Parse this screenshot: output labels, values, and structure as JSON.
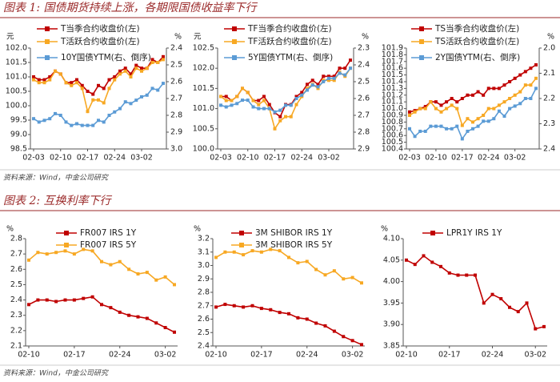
{
  "figures": [
    {
      "title": "图表 1:  国债期货持续上涨，各期限国债收益率下行",
      "source": "资料来源：Wind，中金公司研究"
    },
    {
      "title": "图表 2:  互换利率下行",
      "source": "资料来源：Wind，中金公司研究"
    }
  ],
  "chart_data": [
    {
      "type": "line",
      "y_unit": "元",
      "y2_unit": "%",
      "categories": [
        "02-03",
        null,
        null,
        null,
        null,
        "02-10",
        null,
        null,
        null,
        null,
        "02-17",
        null,
        null,
        null,
        null,
        "02-24",
        null,
        null,
        null,
        null,
        "03-02",
        null,
        null,
        null,
        null
      ],
      "ylim": [
        98.5,
        102
      ],
      "yticks": [
        98.5,
        {
          "value": 99,
          "label": "99.0"
        },
        99.5,
        {
          "value": 100,
          "label": "100.0"
        },
        100.5,
        {
          "value": 101,
          "label": "101.0"
        },
        101.5,
        {
          "value": 102,
          "label": "102.0"
        }
      ],
      "y2lim": [
        2.4,
        3
      ],
      "y2ticks": [
        2.4,
        2.5,
        2.6,
        2.7,
        2.8,
        2.9,
        {
          "value": 3,
          "label": "3.0"
        }
      ],
      "y2_inverted": true,
      "grid": false,
      "series": [
        {
          "name": "T当季合约收盘价(左)",
          "color": "#c00000",
          "values": [
            101.0,
            100.9,
            100.9,
            101.0,
            101.2,
            101.1,
            100.8,
            100.8,
            100.9,
            100.7,
            100.5,
            100.4,
            100.7,
            100.6,
            100.9,
            101.0,
            101.2,
            101.3,
            101.1,
            101.4,
            101.3,
            101.3,
            101.6,
            101.5,
            101.7
          ]
        },
        {
          "name": "T活跃合约收盘价(左)",
          "color": "#f7a823",
          "values": [
            100.9,
            100.8,
            100.8,
            100.9,
            101.2,
            101.1,
            100.8,
            100.7,
            100.8,
            100.6,
            99.8,
            100.2,
            100.2,
            100.1,
            100.6,
            100.9,
            101.1,
            101.2,
            101.0,
            101.3,
            101.2,
            101.3,
            101.5,
            101.5,
            101.6
          ]
        },
        {
          "name": "10Y国债YTM(右、倒序)",
          "color": "#5b9bd5",
          "axis": "y2",
          "values": [
            2.82,
            2.84,
            2.83,
            2.82,
            2.79,
            2.8,
            2.84,
            2.86,
            2.85,
            2.86,
            2.86,
            2.86,
            2.83,
            2.84,
            2.8,
            2.78,
            2.76,
            2.72,
            2.73,
            2.71,
            2.69,
            2.68,
            2.64,
            2.65,
            2.61
          ]
        }
      ]
    },
    {
      "type": "line",
      "y_unit": "元",
      "y2_unit": "%",
      "categories": [
        "02-03",
        null,
        null,
        null,
        null,
        "02-10",
        null,
        null,
        null,
        null,
        "02-17",
        null,
        null,
        null,
        null,
        "02-24",
        null,
        null,
        null,
        null,
        "03-02",
        null,
        null,
        null,
        null
      ],
      "ylim": [
        100,
        102.5
      ],
      "yticks": [
        {
          "value": 100,
          "label": "100.0"
        },
        100.5,
        {
          "value": 101,
          "label": "101.0"
        },
        101.5,
        {
          "value": 102,
          "label": "102.0"
        },
        102.5
      ],
      "y2lim": [
        2.3,
        2.9
      ],
      "y2ticks": [
        2.3,
        2.4,
        2.5,
        2.6,
        2.7,
        2.8,
        2.9
      ],
      "y2_inverted": true,
      "grid": false,
      "series": [
        {
          "name": "TF当季合约收盘价(左)",
          "color": "#c00000",
          "values": [
            101.3,
            101.3,
            101.2,
            101.3,
            101.5,
            101.4,
            101.2,
            101.2,
            101.3,
            101.1,
            100.9,
            100.8,
            101.1,
            101.1,
            101.3,
            101.4,
            101.6,
            101.7,
            101.6,
            101.8,
            101.8,
            101.8,
            102.0,
            102.0,
            102.2
          ]
        },
        {
          "name": "TF活跃合约收盘价(左)",
          "color": "#f7a823",
          "values": [
            101.3,
            101.2,
            101.2,
            101.3,
            101.5,
            101.4,
            101.2,
            101.1,
            101.2,
            101.0,
            100.5,
            100.7,
            100.8,
            100.8,
            101.1,
            101.3,
            101.5,
            101.6,
            101.5,
            101.7,
            101.7,
            101.7,
            101.9,
            101.8,
            102.0
          ]
        },
        {
          "name": "5Y国债YTM(右、倒序)",
          "color": "#5b9bd5",
          "axis": "y2",
          "values": [
            2.64,
            2.65,
            2.64,
            2.63,
            2.61,
            2.61,
            2.65,
            2.66,
            2.66,
            2.66,
            2.68,
            2.67,
            2.64,
            2.64,
            2.6,
            2.58,
            2.55,
            2.52,
            2.53,
            2.5,
            2.48,
            2.48,
            2.45,
            2.46,
            2.42
          ]
        }
      ]
    },
    {
      "type": "line",
      "y2_unit": "%",
      "categories": [
        "02-03",
        null,
        null,
        null,
        null,
        "02-10",
        null,
        null,
        null,
        null,
        "02-17",
        null,
        null,
        null,
        null,
        "02-24",
        null,
        null,
        null,
        null,
        "03-02",
        null,
        null,
        null,
        null
      ],
      "ylim": [
        100.4,
        101.9
      ],
      "yticks": [
        100.4,
        100.5,
        100.6,
        100.7,
        100.8,
        100.9,
        {
          "value": 101,
          "label": "101.0"
        },
        101.1,
        101.2,
        101.3,
        101.4,
        101.5,
        101.6,
        101.7,
        101.8,
        101.9
      ],
      "y2lim": [
        2,
        2.4
      ],
      "y2ticks": [
        {
          "value": 2,
          "label": "2.0"
        },
        2.1,
        2.2,
        2.3,
        2.4
      ],
      "y2_inverted": true,
      "grid": false,
      "series": [
        {
          "name": "TS当季合约收盘价(左)",
          "color": "#c00000",
          "values": [
            100.95,
            100.97,
            101.0,
            101.03,
            101.1,
            101.1,
            101.05,
            101.1,
            101.15,
            101.1,
            101.15,
            101.2,
            101.2,
            101.25,
            101.2,
            101.3,
            101.3,
            101.3,
            101.35,
            101.4,
            101.45,
            101.5,
            101.55,
            101.6,
            101.65
          ]
        },
        {
          "name": "TS活跃合约收盘价(左)",
          "color": "#f7a823",
          "values": [
            100.9,
            100.95,
            101.0,
            101.0,
            101.1,
            101.0,
            100.95,
            101.0,
            101.05,
            101.0,
            100.75,
            100.85,
            100.8,
            100.85,
            100.9,
            101.0,
            101.0,
            101.05,
            101.1,
            101.15,
            101.2,
            101.25,
            101.35,
            101.35,
            101.45
          ]
        },
        {
          "name": "2Y国债YTM(右、倒序)",
          "color": "#5b9bd5",
          "axis": "y2",
          "values": [
            2.32,
            2.35,
            2.33,
            2.33,
            2.31,
            2.31,
            2.31,
            2.32,
            2.32,
            2.31,
            2.36,
            2.33,
            2.32,
            2.31,
            2.29,
            2.29,
            2.28,
            2.25,
            2.27,
            2.24,
            2.23,
            2.22,
            2.2,
            2.2,
            2.16
          ]
        }
      ]
    },
    {
      "type": "line",
      "y_unit": "%",
      "categories": [
        "02-10",
        null,
        null,
        null,
        null,
        "02-17",
        null,
        null,
        null,
        null,
        "02-24",
        null,
        null,
        null,
        null,
        "03-02",
        null
      ],
      "ylim": [
        2.1,
        2.8
      ],
      "yticks": [
        2.1,
        2.2,
        2.3,
        2.4,
        2.5,
        2.6,
        2.7,
        2.8
      ],
      "grid": false,
      "series": [
        {
          "name": "FR007 IRS 1Y",
          "color": "#c00000",
          "values": [
            2.37,
            2.4,
            2.4,
            2.39,
            2.4,
            2.4,
            2.41,
            2.42,
            2.37,
            2.35,
            2.32,
            2.3,
            2.29,
            2.28,
            2.25,
            2.22,
            2.19
          ]
        },
        {
          "name": "FR007 IRS 5Y",
          "color": "#f7a823",
          "values": [
            2.66,
            2.71,
            2.7,
            2.71,
            2.72,
            2.7,
            2.73,
            2.72,
            2.65,
            2.63,
            2.65,
            2.6,
            2.57,
            2.58,
            2.53,
            2.55,
            2.5
          ]
        }
      ]
    },
    {
      "type": "line",
      "y_unit": "%",
      "categories": [
        "02-10",
        null,
        null,
        null,
        null,
        "02-17",
        null,
        null,
        null,
        null,
        "02-24",
        null,
        null,
        null,
        null,
        "03-02",
        null
      ],
      "ylim": [
        2.4,
        3.2
      ],
      "yticks": [
        2.4,
        2.5,
        2.6,
        2.7,
        2.8,
        2.9,
        {
          "value": 3,
          "label": "3.0"
        },
        3.1,
        3.2
      ],
      "grid": false,
      "series": [
        {
          "name": "3M SHIBOR IRS 1Y",
          "color": "#c00000",
          "values": [
            2.69,
            2.71,
            2.7,
            2.69,
            2.7,
            2.68,
            2.67,
            2.65,
            2.64,
            2.61,
            2.6,
            2.57,
            2.55,
            2.51,
            2.47,
            2.44,
            2.41
          ]
        },
        {
          "name": "3M SHIBOR IRS 5Y",
          "color": "#f7a823",
          "values": [
            3.06,
            3.1,
            3.1,
            3.08,
            3.11,
            3.1,
            3.12,
            3.11,
            3.06,
            3.02,
            3.03,
            2.97,
            2.93,
            2.96,
            2.9,
            2.91,
            2.87
          ]
        }
      ]
    },
    {
      "type": "line",
      "y_unit": "%",
      "categories": [
        "02-10",
        null,
        null,
        null,
        null,
        "02-17",
        null,
        null,
        null,
        null,
        "02-24",
        null,
        null,
        null,
        null,
        "03-02",
        null
      ],
      "ylim": [
        3.85,
        4.1
      ],
      "yticks": [
        3.85,
        {
          "value": 3.9,
          "label": "3.90"
        },
        3.95,
        {
          "value": 4,
          "label": "4.00"
        },
        4.05,
        {
          "value": 4.1,
          "label": "4.10"
        }
      ],
      "grid": false,
      "series": [
        {
          "name": "LPR1Y IRS 1Y",
          "color": "#c00000",
          "values": [
            4.05,
            4.04,
            4.06,
            4.045,
            4.035,
            4.02,
            4.015,
            4.015,
            4.015,
            3.95,
            3.97,
            3.96,
            3.94,
            3.93,
            3.95,
            3.89,
            3.895
          ]
        }
      ]
    }
  ]
}
